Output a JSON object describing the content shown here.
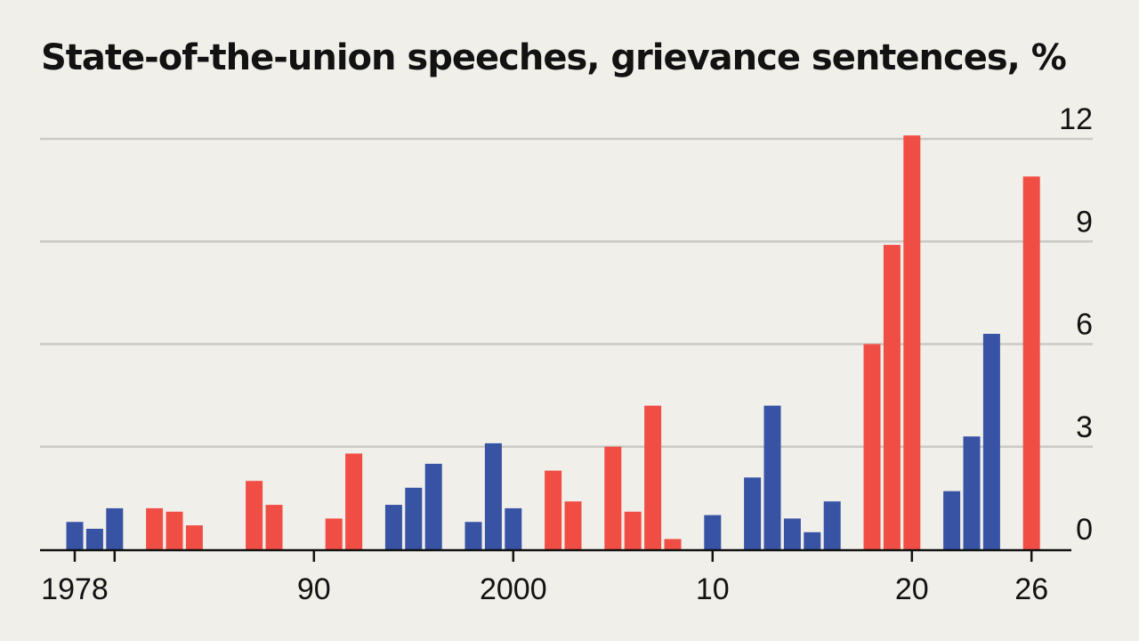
{
  "chart_data": {
    "type": "bar",
    "title": "State-of-the-union speeches, grievance sentences, %",
    "xlabel": "",
    "ylabel": "",
    "ylim": [
      0,
      12
    ],
    "xlim": [
      1977,
      1980
    ],
    "y_ticks": [
      {
        "value": 0,
        "label": "0"
      },
      {
        "value": 3,
        "label": "3"
      },
      {
        "value": 6,
        "label": "6"
      },
      {
        "value": 9,
        "label": "9"
      },
      {
        "value": 12,
        "label": "12"
      }
    ],
    "x_ticks": [
      {
        "year": 1978,
        "label": "1978"
      },
      {
        "year": 1980,
        "label": ""
      },
      {
        "year": 1990,
        "label": "90"
      },
      {
        "year": 2000,
        "label": "2000"
      },
      {
        "year": 2010,
        "label": "10"
      },
      {
        "year": 2020,
        "label": "20"
      },
      {
        "year": 2026,
        "label": "26"
      }
    ],
    "y_axis_position": "right",
    "grid": true,
    "legend": "none",
    "colors": {
      "Democrat": "#3953a4",
      "Republican": "#f04e45"
    },
    "bars": [
      {
        "year": 1978,
        "value": 0.8,
        "party": "Democrat"
      },
      {
        "year": 1979,
        "value": 0.6,
        "party": "Democrat"
      },
      {
        "year": 1980,
        "value": 1.2,
        "party": "Democrat"
      },
      {
        "year": 1982,
        "value": 1.2,
        "party": "Republican"
      },
      {
        "year": 1983,
        "value": 1.1,
        "party": "Republican"
      },
      {
        "year": 1984,
        "value": 0.7,
        "party": "Republican"
      },
      {
        "year": 1987,
        "value": 2.0,
        "party": "Republican"
      },
      {
        "year": 1988,
        "value": 1.3,
        "party": "Republican"
      },
      {
        "year": 1991,
        "value": 0.9,
        "party": "Republican"
      },
      {
        "year": 1992,
        "value": 2.8,
        "party": "Republican"
      },
      {
        "year": 1994,
        "value": 1.3,
        "party": "Democrat"
      },
      {
        "year": 1995,
        "value": 1.8,
        "party": "Democrat"
      },
      {
        "year": 1996,
        "value": 2.5,
        "party": "Democrat"
      },
      {
        "year": 1998,
        "value": 0.8,
        "party": "Democrat"
      },
      {
        "year": 1999,
        "value": 3.1,
        "party": "Democrat"
      },
      {
        "year": 2000,
        "value": 1.2,
        "party": "Democrat"
      },
      {
        "year": 2002,
        "value": 2.3,
        "party": "Republican"
      },
      {
        "year": 2003,
        "value": 1.4,
        "party": "Republican"
      },
      {
        "year": 2005,
        "value": 3.0,
        "party": "Republican"
      },
      {
        "year": 2006,
        "value": 1.1,
        "party": "Republican"
      },
      {
        "year": 2007,
        "value": 4.2,
        "party": "Republican"
      },
      {
        "year": 2008,
        "value": 0.3,
        "party": "Republican"
      },
      {
        "year": 2010,
        "value": 1.0,
        "party": "Democrat"
      },
      {
        "year": 2012,
        "value": 2.1,
        "party": "Democrat"
      },
      {
        "year": 2013,
        "value": 4.2,
        "party": "Democrat"
      },
      {
        "year": 2014,
        "value": 0.9,
        "party": "Democrat"
      },
      {
        "year": 2015,
        "value": 0.5,
        "party": "Democrat"
      },
      {
        "year": 2016,
        "value": 1.4,
        "party": "Democrat"
      },
      {
        "year": 2018,
        "value": 6.0,
        "party": "Republican"
      },
      {
        "year": 2019,
        "value": 8.9,
        "party": "Republican"
      },
      {
        "year": 2020,
        "value": 12.1,
        "party": "Republican"
      },
      {
        "year": 2022,
        "value": 1.7,
        "party": "Democrat"
      },
      {
        "year": 2023,
        "value": 3.3,
        "party": "Democrat"
      },
      {
        "year": 2024,
        "value": 6.3,
        "party": "Democrat"
      },
      {
        "year": 2026,
        "value": 10.9,
        "party": "Republican"
      }
    ]
  }
}
